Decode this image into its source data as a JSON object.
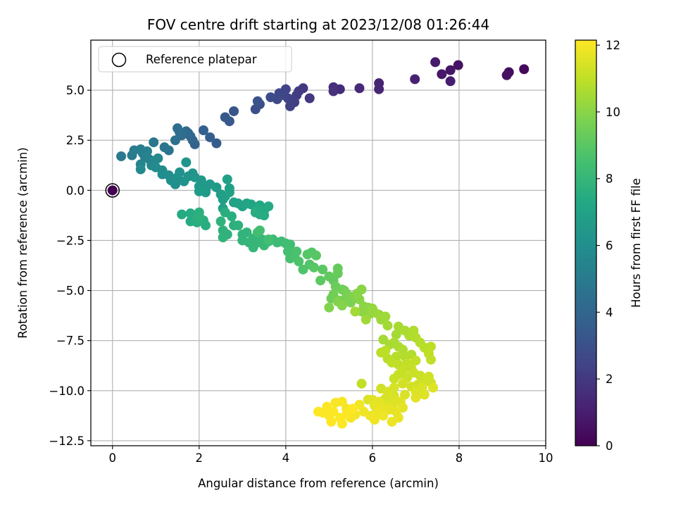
{
  "chart_data": {
    "type": "scatter",
    "title": "FOV centre drift starting at 2023/12/08 01:26:44",
    "xlabel": "Angular distance from reference (arcmin)",
    "ylabel": "Rotation from reference (arcmin)",
    "xlim": [
      -0.5,
      10
    ],
    "ylim": [
      -12.75,
      7.5
    ],
    "xticks": [
      0,
      2,
      4,
      6,
      8,
      10
    ],
    "xtick_labels": [
      "0",
      "2",
      "4",
      "6",
      "8",
      "10"
    ],
    "yticks": [
      -12.5,
      -10.0,
      -7.5,
      -5.0,
      -2.5,
      0.0,
      2.5,
      5.0
    ],
    "ytick_labels": [
      "−12.5",
      "−10.0",
      "−7.5",
      "−5.0",
      "−2.5",
      "0.0",
      "2.5",
      "5.0"
    ],
    "grid": true,
    "legend": {
      "position": "top-left",
      "entries": [
        "Reference platepar"
      ]
    },
    "reference_point": {
      "x": 0,
      "y": 0,
      "t": 0
    },
    "colorbar": {
      "label": "Hours from first FF file",
      "colormap": "viridis",
      "range": [
        0,
        12.15
      ],
      "ticks": [
        0,
        2,
        4,
        6,
        8,
        10,
        12
      ],
      "tick_labels": [
        "0",
        "2",
        "4",
        "6",
        "8",
        "10",
        "12"
      ]
    },
    "points": [
      [
        9.5,
        6.05,
        0.3
      ],
      [
        9.15,
        5.9,
        0.4
      ],
      [
        9.1,
        5.75,
        0.5
      ],
      [
        7.98,
        6.25,
        0.6
      ],
      [
        7.8,
        6.0,
        0.7
      ],
      [
        7.6,
        5.8,
        0.8
      ],
      [
        7.45,
        6.4,
        0.9
      ],
      [
        7.8,
        5.45,
        1.0
      ],
      [
        6.98,
        5.55,
        1.1
      ],
      [
        6.15,
        5.35,
        1.2
      ],
      [
        6.15,
        5.05,
        1.3
      ],
      [
        5.7,
        5.1,
        1.4
      ],
      [
        5.25,
        5.05,
        1.5
      ],
      [
        5.1,
        5.15,
        1.6
      ],
      [
        5.1,
        4.95,
        1.7
      ],
      [
        4.55,
        4.6,
        1.9
      ],
      [
        4.4,
        5.1,
        2.0
      ],
      [
        4.3,
        4.95,
        2.1
      ],
      [
        4.25,
        4.75,
        2.2
      ],
      [
        4.2,
        4.4,
        2.3
      ],
      [
        4.1,
        4.2,
        2.35
      ],
      [
        4.05,
        4.6,
        2.4
      ],
      [
        4.0,
        5.05,
        2.5
      ],
      [
        3.95,
        4.75,
        2.55
      ],
      [
        3.85,
        4.85,
        2.6
      ],
      [
        3.8,
        4.55,
        2.7
      ],
      [
        3.65,
        4.65,
        2.8
      ],
      [
        3.4,
        4.3,
        2.9
      ],
      [
        3.3,
        4.05,
        3.0
      ],
      [
        3.35,
        4.45,
        3.1
      ],
      [
        2.8,
        3.95,
        3.2
      ],
      [
        2.6,
        3.65,
        3.3
      ],
      [
        2.7,
        3.45,
        3.4
      ],
      [
        2.4,
        2.35,
        3.5
      ],
      [
        2.25,
        2.65,
        3.6
      ],
      [
        2.1,
        3.0,
        3.7
      ],
      [
        1.9,
        2.3,
        3.8
      ],
      [
        1.85,
        2.5,
        3.9
      ],
      [
        1.8,
        2.7,
        4.0
      ],
      [
        1.75,
        2.85,
        4.1
      ],
      [
        1.7,
        2.95,
        4.2
      ],
      [
        1.6,
        2.75,
        4.3
      ],
      [
        1.55,
        2.9,
        4.35
      ],
      [
        1.5,
        3.1,
        4.4
      ],
      [
        1.45,
        2.5,
        4.5
      ],
      [
        1.3,
        2.0,
        4.6
      ],
      [
        1.2,
        2.15,
        4.7
      ],
      [
        0.95,
        2.4,
        4.8
      ],
      [
        0.2,
        1.7,
        4.9
      ],
      [
        0.45,
        1.75,
        5.0
      ],
      [
        0.5,
        2.0,
        5.1
      ],
      [
        0.65,
        2.05,
        5.15
      ],
      [
        0.7,
        1.85,
        5.2
      ],
      [
        0.75,
        1.65,
        5.3
      ],
      [
        0.8,
        1.95,
        5.35
      ],
      [
        0.85,
        1.55,
        5.4
      ],
      [
        0.65,
        1.3,
        5.5
      ],
      [
        0.9,
        1.25,
        5.55
      ],
      [
        0.95,
        1.45,
        5.6
      ],
      [
        1.05,
        1.6,
        5.7
      ],
      [
        0.65,
        1.05,
        5.75
      ],
      [
        1.0,
        1.15,
        5.8
      ],
      [
        1.15,
        1.0,
        5.85
      ],
      [
        1.15,
        0.8,
        5.9
      ],
      [
        1.3,
        0.75,
        5.95
      ],
      [
        1.35,
        0.5,
        6.0
      ],
      [
        1.45,
        0.3,
        6.05
      ],
      [
        1.5,
        0.65,
        6.1
      ],
      [
        1.55,
        0.9,
        6.15
      ],
      [
        1.65,
        0.45,
        6.2
      ],
      [
        1.75,
        0.7,
        6.25
      ],
      [
        1.85,
        0.85,
        6.3
      ],
      [
        1.7,
        1.4,
        6.3
      ],
      [
        1.9,
        0.65,
        6.35
      ],
      [
        2.0,
        0.2,
        6.4
      ],
      [
        2.05,
        0.5,
        6.45
      ],
      [
        2.15,
        0.1,
        6.5
      ],
      [
        2.25,
        0.3,
        6.55
      ],
      [
        2.4,
        0.15,
        6.6
      ],
      [
        2.15,
        -0.1,
        6.6
      ],
      [
        2.0,
        -0.05,
        6.65
      ],
      [
        2.5,
        -0.2,
        6.7
      ],
      [
        2.6,
        -0.3,
        6.75
      ],
      [
        2.55,
        -0.45,
        6.8
      ],
      [
        2.7,
        0.1,
        6.85
      ],
      [
        2.65,
        0.55,
        6.9
      ],
      [
        2.7,
        -0.1,
        6.9
      ],
      [
        2.55,
        -0.9,
        6.95
      ],
      [
        2.8,
        -0.6,
        7.0
      ],
      [
        2.9,
        -0.65,
        7.0
      ],
      [
        3.0,
        -0.8,
        7.05
      ],
      [
        3.1,
        -0.65,
        7.1
      ],
      [
        3.2,
        -0.7,
        7.15
      ],
      [
        3.3,
        -0.85,
        7.2
      ],
      [
        3.4,
        -0.75,
        7.25
      ],
      [
        3.5,
        -1.0,
        7.3
      ],
      [
        3.6,
        -0.8,
        7.35
      ],
      [
        3.4,
        -1.2,
        7.4
      ],
      [
        3.35,
        -0.95,
        7.4
      ],
      [
        3.5,
        -1.25,
        7.45
      ],
      [
        3.3,
        -1.1,
        7.5
      ],
      [
        1.6,
        -1.2,
        7.4
      ],
      [
        1.8,
        -1.15,
        7.45
      ],
      [
        1.8,
        -1.55,
        7.45
      ],
      [
        1.95,
        -1.6,
        7.5
      ],
      [
        1.95,
        -1.4,
        7.55
      ],
      [
        2.1,
        -1.5,
        7.6
      ],
      [
        2.15,
        -1.75,
        7.6
      ],
      [
        2.0,
        -1.1,
        7.65
      ],
      [
        2.0,
        -1.3,
        7.7
      ],
      [
        2.6,
        -1.1,
        7.6
      ],
      [
        2.75,
        -1.3,
        7.6
      ],
      [
        2.8,
        -1.75,
        7.65
      ],
      [
        2.9,
        -1.75,
        7.7
      ],
      [
        2.55,
        -2.0,
        7.75
      ],
      [
        2.65,
        -2.2,
        7.8
      ],
      [
        2.55,
        -2.35,
        7.85
      ],
      [
        2.5,
        -1.55,
        7.8
      ],
      [
        3.0,
        -2.2,
        7.85
      ],
      [
        3.1,
        -2.1,
        7.9
      ],
      [
        3.0,
        -2.5,
        7.9
      ],
      [
        3.15,
        -2.6,
        7.95
      ],
      [
        3.25,
        -2.4,
        8.0
      ],
      [
        3.45,
        -2.45,
        8.0
      ],
      [
        3.4,
        -2.6,
        8.05
      ],
      [
        3.25,
        -2.85,
        8.05
      ],
      [
        3.5,
        -2.75,
        8.1
      ],
      [
        3.6,
        -2.55,
        8.15
      ],
      [
        3.7,
        -2.45,
        8.2
      ],
      [
        3.8,
        -2.6,
        8.25
      ],
      [
        3.9,
        -2.55,
        8.3
      ],
      [
        4.0,
        -2.65,
        8.35
      ],
      [
        4.1,
        -2.7,
        8.4
      ],
      [
        3.35,
        -2.1,
        8.4
      ],
      [
        3.4,
        -2.0,
        8.45
      ],
      [
        3.6,
        -2.45,
        8.5
      ],
      [
        4.05,
        -3.05,
        8.5
      ],
      [
        4.1,
        -3.4,
        8.55
      ],
      [
        4.2,
        -3.3,
        8.6
      ],
      [
        4.25,
        -3.05,
        8.65
      ],
      [
        4.3,
        -3.55,
        8.7
      ],
      [
        4.4,
        -3.95,
        8.75
      ],
      [
        4.55,
        -3.7,
        8.8
      ],
      [
        4.6,
        -3.1,
        8.85
      ],
      [
        4.5,
        -3.2,
        8.9
      ],
      [
        4.7,
        -3.25,
        8.95
      ],
      [
        4.65,
        -3.85,
        9.0
      ],
      [
        4.85,
        -3.95,
        9.05
      ],
      [
        4.8,
        -4.5,
        9.1
      ],
      [
        5.0,
        -4.3,
        9.15
      ],
      [
        5.1,
        -4.5,
        9.2
      ],
      [
        5.2,
        -3.9,
        9.25
      ],
      [
        5.2,
        -4.15,
        9.3
      ],
      [
        5.15,
        -4.8,
        9.35
      ],
      [
        5.3,
        -4.95,
        9.4
      ],
      [
        5.05,
        -5.4,
        9.45
      ],
      [
        5.1,
        -5.2,
        9.5
      ],
      [
        5.35,
        -5.0,
        9.55
      ],
      [
        5.4,
        -5.15,
        9.6
      ],
      [
        5.25,
        -5.5,
        9.65
      ],
      [
        5.45,
        -5.4,
        9.7
      ],
      [
        5.5,
        -5.6,
        9.75
      ],
      [
        5.55,
        -5.3,
        9.8
      ],
      [
        5.0,
        -5.85,
        9.85
      ],
      [
        5.2,
        -5.55,
        9.85
      ],
      [
        5.3,
        -5.75,
        9.9
      ],
      [
        5.7,
        -5.45,
        9.95
      ],
      [
        5.75,
        -4.95,
        10.0
      ],
      [
        5.65,
        -5.15,
        10.0
      ],
      [
        5.8,
        -5.8,
        10.0
      ],
      [
        5.75,
        -6.05,
        10.05
      ],
      [
        5.9,
        -5.85,
        10.1
      ],
      [
        5.95,
        -6.15,
        10.15
      ],
      [
        6.0,
        -5.9,
        10.2
      ],
      [
        6.05,
        -6.1,
        10.25
      ],
      [
        6.15,
        -6.2,
        10.3
      ],
      [
        6.2,
        -6.45,
        10.35
      ],
      [
        6.3,
        -6.3,
        10.4
      ],
      [
        5.85,
        -6.45,
        10.4
      ],
      [
        5.6,
        -6.05,
        10.45
      ],
      [
        6.35,
        -6.75,
        10.45
      ],
      [
        6.55,
        -7.2,
        10.5
      ],
      [
        6.6,
        -6.8,
        10.55
      ],
      [
        6.75,
        -7.0,
        10.6
      ],
      [
        6.85,
        -7.25,
        10.65
      ],
      [
        6.95,
        -7.0,
        10.7
      ],
      [
        7.0,
        -7.35,
        10.75
      ],
      [
        7.1,
        -7.6,
        10.8
      ],
      [
        7.2,
        -7.85,
        10.85
      ],
      [
        7.35,
        -7.8,
        10.9
      ],
      [
        7.3,
        -8.15,
        10.95
      ],
      [
        7.35,
        -8.45,
        11.0
      ],
      [
        6.25,
        -7.45,
        10.5
      ],
      [
        6.4,
        -7.7,
        10.55
      ],
      [
        6.5,
        -7.6,
        10.6
      ],
      [
        6.6,
        -7.8,
        10.65
      ],
      [
        6.7,
        -7.95,
        10.7
      ],
      [
        6.75,
        -8.3,
        10.75
      ],
      [
        6.9,
        -8.2,
        10.75
      ],
      [
        6.55,
        -8.3,
        10.8
      ],
      [
        6.35,
        -8.4,
        10.85
      ],
      [
        6.2,
        -8.1,
        10.9
      ],
      [
        6.3,
        -8.0,
        10.9
      ],
      [
        6.45,
        -8.6,
        10.95
      ],
      [
        6.6,
        -8.7,
        11.0
      ],
      [
        6.8,
        -8.65,
        11.0
      ],
      [
        6.9,
        -8.9,
        11.05
      ],
      [
        7.0,
        -8.5,
        11.05
      ],
      [
        6.7,
        -9.0,
        11.1
      ],
      [
        6.6,
        -9.2,
        11.1
      ],
      [
        6.5,
        -9.4,
        11.15
      ],
      [
        6.8,
        -9.35,
        11.15
      ],
      [
        6.95,
        -9.1,
        11.2
      ],
      [
        7.1,
        -9.25,
        11.2
      ],
      [
        7.2,
        -9.5,
        11.25
      ],
      [
        7.35,
        -9.6,
        11.25
      ],
      [
        7.3,
        -9.3,
        11.3
      ],
      [
        7.05,
        -9.7,
        11.3
      ],
      [
        6.9,
        -9.8,
        11.35
      ],
      [
        6.7,
        -9.65,
        11.35
      ],
      [
        6.5,
        -9.85,
        11.4
      ],
      [
        6.35,
        -10.05,
        11.4
      ],
      [
        6.5,
        -10.25,
        11.45
      ],
      [
        6.75,
        -10.2,
        11.45
      ],
      [
        7.0,
        -10.05,
        11.5
      ],
      [
        7.15,
        -9.85,
        11.5
      ],
      [
        7.4,
        -9.85,
        11.55
      ],
      [
        7.2,
        -10.2,
        11.55
      ],
      [
        7.0,
        -10.35,
        11.6
      ],
      [
        6.2,
        -9.9,
        11.3
      ],
      [
        6.3,
        -10.4,
        11.4
      ],
      [
        6.35,
        -10.75,
        11.55
      ],
      [
        6.5,
        -10.6,
        11.55
      ],
      [
        6.65,
        -10.55,
        11.6
      ],
      [
        6.7,
        -10.85,
        11.65
      ],
      [
        6.55,
        -11.05,
        11.7
      ],
      [
        6.4,
        -10.95,
        11.75
      ],
      [
        6.6,
        -11.35,
        11.75
      ],
      [
        6.45,
        -11.55,
        11.8
      ],
      [
        6.0,
        -10.45,
        11.6
      ],
      [
        6.15,
        -10.55,
        11.65
      ],
      [
        6.05,
        -10.75,
        11.7
      ],
      [
        6.2,
        -10.85,
        11.75
      ],
      [
        6.1,
        -11.1,
        11.8
      ],
      [
        5.95,
        -11.25,
        11.85
      ],
      [
        6.25,
        -11.25,
        11.85
      ],
      [
        6.05,
        -11.45,
        11.9
      ],
      [
        5.8,
        -11.05,
        11.9
      ],
      [
        5.7,
        -10.7,
        11.95
      ],
      [
        5.6,
        -11.2,
        11.95
      ],
      [
        5.5,
        -11.35,
        12.0
      ],
      [
        5.4,
        -10.9,
        12.0
      ],
      [
        5.3,
        -10.55,
        12.05
      ],
      [
        5.15,
        -10.6,
        12.05
      ],
      [
        5.1,
        -11.05,
        12.1
      ],
      [
        5.0,
        -11.25,
        12.1
      ],
      [
        4.95,
        -10.8,
        12.1
      ],
      [
        4.85,
        -11.1,
        12.12
      ],
      [
        5.25,
        -11.35,
        12.12
      ],
      [
        5.3,
        -11.65,
        12.14
      ],
      [
        5.4,
        -11.2,
        12.14
      ],
      [
        5.55,
        -10.9,
        12.15
      ],
      [
        5.75,
        -9.65,
        11.0
      ],
      [
        5.9,
        -10.45,
        11.5
      ],
      [
        5.05,
        -11.55,
        12.15
      ],
      [
        4.75,
        -11.05,
        12.15
      ]
    ]
  }
}
